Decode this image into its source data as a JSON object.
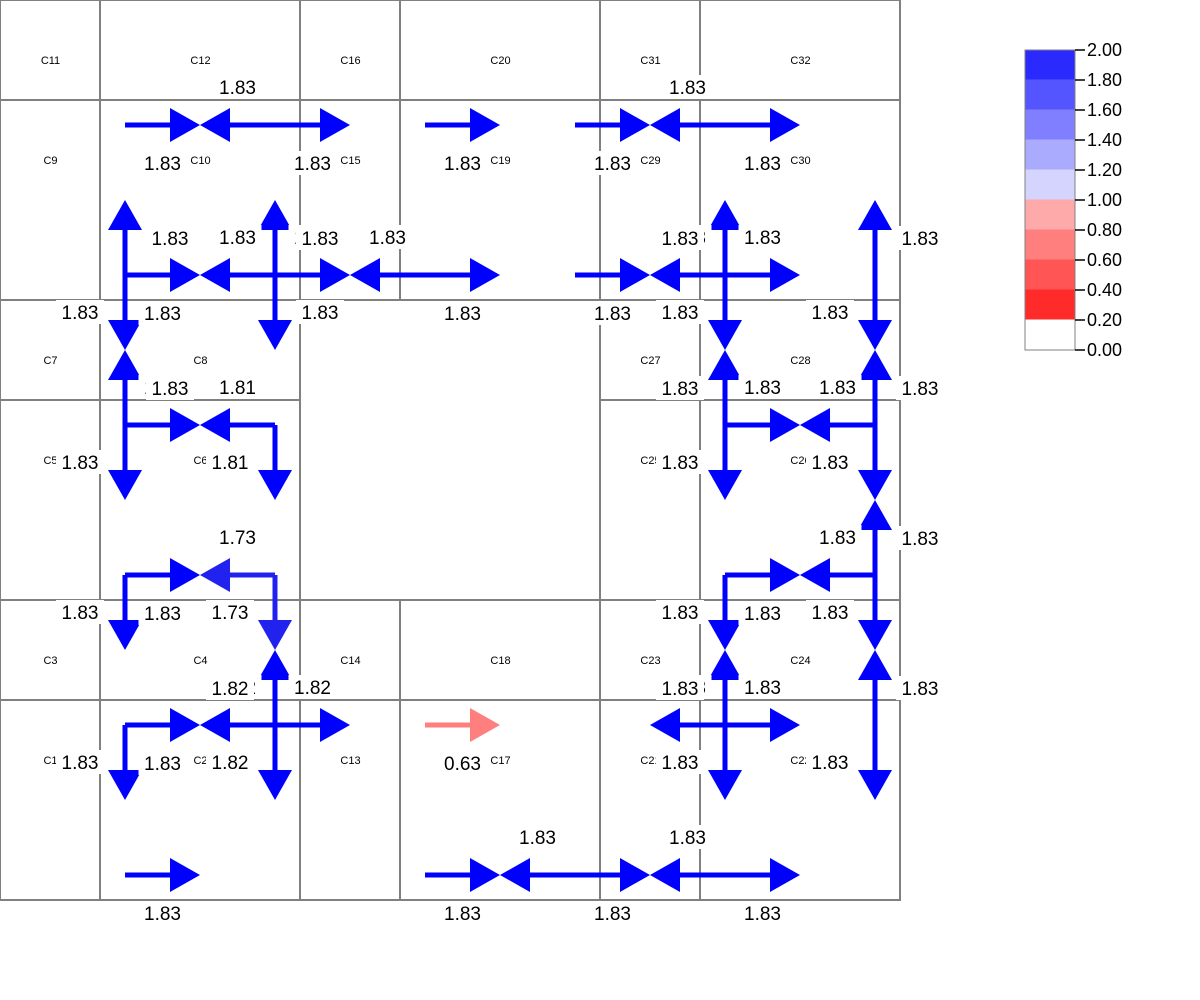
{
  "cells": [
    {
      "id": "C1",
      "c0": 0,
      "c1": 1,
      "r0": 7,
      "r1": 9
    },
    {
      "id": "C2",
      "c0": 1,
      "c1": 3,
      "r0": 7,
      "r1": 9
    },
    {
      "id": "C3",
      "c0": 0,
      "c1": 1,
      "r0": 6,
      "r1": 7
    },
    {
      "id": "C4",
      "c0": 1,
      "c1": 3,
      "r0": 6,
      "r1": 7
    },
    {
      "id": "C5",
      "c0": 0,
      "c1": 1,
      "r0": 4,
      "r1": 6
    },
    {
      "id": "C6",
      "c0": 1,
      "c1": 3,
      "r0": 4,
      "r1": 6
    },
    {
      "id": "C7",
      "c0": 0,
      "c1": 1,
      "r0": 3,
      "r1": 4
    },
    {
      "id": "C8",
      "c0": 1,
      "c1": 3,
      "r0": 3,
      "r1": 4
    },
    {
      "id": "C9",
      "c0": 0,
      "c1": 1,
      "r0": 1,
      "r1": 3
    },
    {
      "id": "C10",
      "c0": 1,
      "c1": 3,
      "r0": 1,
      "r1": 3
    },
    {
      "id": "C11",
      "c0": 0,
      "c1": 1,
      "r0": 0,
      "r1": 1
    },
    {
      "id": "C12",
      "c0": 1,
      "c1": 3,
      "r0": 0,
      "r1": 1
    },
    {
      "id": "C13",
      "c0": 3,
      "c1": 4,
      "r0": 7,
      "r1": 9
    },
    {
      "id": "C14",
      "c0": 3,
      "c1": 4,
      "r0": 6,
      "r1": 7
    },
    {
      "id": "C15",
      "c0": 3,
      "c1": 4,
      "r0": 1,
      "r1": 3
    },
    {
      "id": "C16",
      "c0": 3,
      "c1": 4,
      "r0": 0,
      "r1": 1
    },
    {
      "id": "C17",
      "c0": 4,
      "c1": 6,
      "r0": 7,
      "r1": 9
    },
    {
      "id": "C18",
      "c0": 4,
      "c1": 6,
      "r0": 6,
      "r1": 7
    },
    {
      "id": "C19",
      "c0": 4,
      "c1": 6,
      "r0": 1,
      "r1": 3
    },
    {
      "id": "C20",
      "c0": 4,
      "c1": 6,
      "r0": 0,
      "r1": 1
    },
    {
      "id": "C21",
      "c0": 6,
      "c1": 7,
      "r0": 7,
      "r1": 9
    },
    {
      "id": "C22",
      "c0": 7,
      "c1": 9,
      "r0": 7,
      "r1": 9
    },
    {
      "id": "C23",
      "c0": 6,
      "c1": 7,
      "r0": 6,
      "r1": 7
    },
    {
      "id": "C24",
      "c0": 7,
      "c1": 9,
      "r0": 6,
      "r1": 7
    },
    {
      "id": "C25",
      "c0": 6,
      "c1": 7,
      "r0": 4,
      "r1": 6
    },
    {
      "id": "C26",
      "c0": 7,
      "c1": 9,
      "r0": 4,
      "r1": 6
    },
    {
      "id": "C27",
      "c0": 6,
      "c1": 7,
      "r0": 3,
      "r1": 4
    },
    {
      "id": "C28",
      "c0": 7,
      "c1": 9,
      "r0": 3,
      "r1": 4
    },
    {
      "id": "C29",
      "c0": 6,
      "c1": 7,
      "r0": 1,
      "r1": 3
    },
    {
      "id": "C30",
      "c0": 7,
      "c1": 9,
      "r0": 1,
      "r1": 3
    },
    {
      "id": "C31",
      "c0": 6,
      "c1": 7,
      "r0": 0,
      "r1": 1
    },
    {
      "id": "C32",
      "c0": 7,
      "c1": 9,
      "r0": 0,
      "r1": 1
    }
  ],
  "horizontal_arrows": [
    {
      "y": 1.25,
      "x_from": 1.25,
      "x_to": 2,
      "value": 1.83,
      "label": "1.83",
      "label_side": "below"
    },
    {
      "y": 1.25,
      "x_from": 2.75,
      "x_to": 2,
      "value": 1.83,
      "label": "1.83",
      "label_side": "above"
    },
    {
      "y": 1.25,
      "x_from": 2.75,
      "x_to": 3.5,
      "value": 1.83,
      "label": "1.83",
      "label_side": "below"
    },
    {
      "y": 1.25,
      "x_from": 4.25,
      "x_to": 5,
      "value": 1.83,
      "label": "1.83",
      "label_side": "below"
    },
    {
      "y": 1.25,
      "x_from": 5.75,
      "x_to": 6.5,
      "value": 1.83,
      "label": "1.83",
      "label_side": "below"
    },
    {
      "y": 1.25,
      "x_from": 7.25,
      "x_to": 6.5,
      "value": 1.83,
      "label": "1.83",
      "label_side": "above"
    },
    {
      "y": 1.25,
      "x_from": 7.25,
      "x_to": 8,
      "value": 1.83,
      "label": "1.83",
      "label_side": "below"
    },
    {
      "y": 2.75,
      "x_from": 1.25,
      "x_to": 2,
      "value": 1.83,
      "label": "1.83",
      "label_side": "below"
    },
    {
      "y": 2.75,
      "x_from": 2.75,
      "x_to": 2,
      "value": 1.83,
      "label": "1.83",
      "label_side": "above"
    },
    {
      "y": 2.75,
      "x_from": 2.75,
      "x_to": 3.5,
      "value": 1.83,
      "label": "1.83",
      "label_side": "above"
    },
    {
      "y": 2.75,
      "x_from": 4.25,
      "x_to": 3.5,
      "value": 1.83,
      "label": "1.83",
      "label_side": "above"
    },
    {
      "y": 2.75,
      "x_from": 4.25,
      "x_to": 5,
      "value": 1.83,
      "label": "1.83",
      "label_side": "below"
    },
    {
      "y": 2.75,
      "x_from": 5.75,
      "x_to": 6.5,
      "value": 1.83,
      "label": "1.83",
      "label_side": "below"
    },
    {
      "y": 2.75,
      "x_from": 7.25,
      "x_to": 6.5,
      "value": 1.83,
      "label": "1.83",
      "label_side": "above"
    },
    {
      "y": 2.75,
      "x_from": 7.25,
      "x_to": 8,
      "value": 1.83,
      "label": "1.83",
      "label_side": "above"
    },
    {
      "y": 4.25,
      "x_from": 1.25,
      "x_to": 2,
      "value": 1.83,
      "label": "1.83",
      "label_side": "above"
    },
    {
      "y": 4.25,
      "x_from": 2.75,
      "x_to": 2,
      "value": 1.81,
      "label": "1.81",
      "label_side": "above"
    },
    {
      "y": 4.25,
      "x_from": 7.25,
      "x_to": 8,
      "value": 1.83,
      "label": "1.83",
      "label_side": "above"
    },
    {
      "y": 4.25,
      "x_from": 8.75,
      "x_to": 8,
      "value": 1.83,
      "label": "1.83",
      "label_side": "above"
    },
    {
      "y": 5.75,
      "x_from": 1.25,
      "x_to": 2,
      "value": 1.83,
      "label": "1.83",
      "label_side": "below"
    },
    {
      "y": 5.75,
      "x_from": 2.75,
      "x_to": 2,
      "value": 1.73,
      "label": "1.73",
      "label_side": "above"
    },
    {
      "y": 5.75,
      "x_from": 7.25,
      "x_to": 8,
      "value": 1.83,
      "label": "1.83",
      "label_side": "below"
    },
    {
      "y": 5.75,
      "x_from": 8.75,
      "x_to": 8,
      "value": 1.83,
      "label": "1.83",
      "label_side": "above"
    },
    {
      "y": 7.25,
      "x_from": 1.25,
      "x_to": 2,
      "value": 1.83,
      "label": "1.83",
      "label_side": "below"
    },
    {
      "y": 7.25,
      "x_from": 2.75,
      "x_to": 2,
      "value": 1.82,
      "label": "1.82",
      "label_side": "above"
    },
    {
      "y": 7.25,
      "x_from": 2.75,
      "x_to": 3.5,
      "value": 1.82,
      "label": "1.82",
      "label_side": "above"
    },
    {
      "y": 7.25,
      "x_from": 4.25,
      "x_to": 5,
      "value": 0.63,
      "label": "0.63",
      "label_side": "below"
    },
    {
      "y": 7.25,
      "x_from": 7.25,
      "x_to": 6.5,
      "value": 1.83,
      "label": "1.83",
      "label_side": "above"
    },
    {
      "y": 7.25,
      "x_from": 7.25,
      "x_to": 8,
      "value": 1.83,
      "label": "1.83",
      "label_side": "above"
    },
    {
      "y": 8.75,
      "x_from": 1.25,
      "x_to": 2,
      "value": 1.83,
      "label": "1.83",
      "label_side": "below"
    },
    {
      "y": 8.75,
      "x_from": 4.25,
      "x_to": 5,
      "value": 1.83,
      "label": "1.83",
      "label_side": "below"
    },
    {
      "y": 8.75,
      "x_from": 5.75,
      "x_to": 5,
      "value": 1.83,
      "label": "1.83",
      "label_side": "above"
    },
    {
      "y": 8.75,
      "x_from": 5.75,
      "x_to": 6.5,
      "value": 1.83,
      "label": "1.83",
      "label_side": "below"
    },
    {
      "y": 8.75,
      "x_from": 7.25,
      "x_to": 6.5,
      "value": 1.83,
      "label": "1.83",
      "label_side": "above"
    },
    {
      "y": 8.75,
      "x_from": 7.25,
      "x_to": 8,
      "value": 1.83,
      "label": "1.83",
      "label_side": "below"
    }
  ],
  "vertical_arrows": [
    {
      "x": 1.25,
      "y_from": 2.75,
      "y_to": 2,
      "value": 1.83,
      "label": "1.83",
      "label_side": "right"
    },
    {
      "x": 1.25,
      "y_from": 2.75,
      "y_to": 3.5,
      "value": 1.83,
      "label": "1.83",
      "label_side": "left"
    },
    {
      "x": 1.25,
      "y_from": 4.25,
      "y_to": 3.5,
      "value": 1.83,
      "label": "1.83",
      "label_side": "right"
    },
    {
      "x": 1.25,
      "y_from": 4.25,
      "y_to": 5,
      "value": 1.83,
      "label": "1.83",
      "label_side": "left"
    },
    {
      "x": 1.25,
      "y_from": 5.75,
      "y_to": 6.5,
      "value": 1.83,
      "label": "1.83",
      "label_side": "left"
    },
    {
      "x": 1.25,
      "y_from": 7.25,
      "y_to": 8,
      "value": 1.83,
      "label": "1.83",
      "label_side": "left"
    },
    {
      "x": 2.75,
      "y_from": 2.75,
      "y_to": 2,
      "value": 1.83,
      "label": "1.83",
      "label_side": "right"
    },
    {
      "x": 2.75,
      "y_from": 2.75,
      "y_to": 3.5,
      "value": 1.83,
      "label": "1.83",
      "label_side": "right"
    },
    {
      "x": 2.75,
      "y_from": 4.25,
      "y_to": 5,
      "value": 1.81,
      "label": "1.81",
      "label_side": "left"
    },
    {
      "x": 2.75,
      "y_from": 5.75,
      "y_to": 6.5,
      "value": 1.73,
      "label": "1.73",
      "label_side": "left"
    },
    {
      "x": 2.75,
      "y_from": 7.25,
      "y_to": 6.5,
      "value": 1.82,
      "label": "1.82",
      "label_side": "left"
    },
    {
      "x": 2.75,
      "y_from": 7.25,
      "y_to": 8,
      "value": 1.82,
      "label": "1.82",
      "label_side": "left"
    },
    {
      "x": 7.25,
      "y_from": 2.75,
      "y_to": 2,
      "value": 1.83,
      "label": "1.83",
      "label_side": "left"
    },
    {
      "x": 7.25,
      "y_from": 2.75,
      "y_to": 3.5,
      "value": 1.83,
      "label": "1.83",
      "label_side": "left"
    },
    {
      "x": 7.25,
      "y_from": 4.25,
      "y_to": 3.5,
      "value": 1.83,
      "label": "1.83",
      "label_side": "left"
    },
    {
      "x": 7.25,
      "y_from": 4.25,
      "y_to": 5,
      "value": 1.83,
      "label": "1.83",
      "label_side": "left"
    },
    {
      "x": 7.25,
      "y_from": 5.75,
      "y_to": 6.5,
      "value": 1.83,
      "label": "1.83",
      "label_side": "left"
    },
    {
      "x": 7.25,
      "y_from": 7.25,
      "y_to": 6.5,
      "value": 1.83,
      "label": "1.83",
      "label_side": "left"
    },
    {
      "x": 7.25,
      "y_from": 7.25,
      "y_to": 8,
      "value": 1.83,
      "label": "1.83",
      "label_side": "left"
    },
    {
      "x": 8.75,
      "y_from": 2.75,
      "y_to": 2,
      "value": 1.83,
      "label": "1.83",
      "label_side": "right"
    },
    {
      "x": 8.75,
      "y_from": 2.75,
      "y_to": 3.5,
      "value": 1.83,
      "label": "1.83",
      "label_side": "left"
    },
    {
      "x": 8.75,
      "y_from": 4.25,
      "y_to": 3.5,
      "value": 1.83,
      "label": "1.83",
      "label_side": "right"
    },
    {
      "x": 8.75,
      "y_from": 4.25,
      "y_to": 5,
      "value": 1.83,
      "label": "1.83",
      "label_side": "left"
    },
    {
      "x": 8.75,
      "y_from": 5.75,
      "y_to": 5,
      "value": 1.83,
      "label": "1.83",
      "label_side": "right"
    },
    {
      "x": 8.75,
      "y_from": 5.75,
      "y_to": 6.5,
      "value": 1.83,
      "label": "1.83",
      "label_side": "left"
    },
    {
      "x": 8.75,
      "y_from": 7.25,
      "y_to": 6.5,
      "value": 1.83,
      "label": "1.83",
      "label_side": "right"
    },
    {
      "x": 8.75,
      "y_from": 7.25,
      "y_to": 8,
      "value": 1.83,
      "label": "1.83",
      "label_side": "left"
    }
  ],
  "legend": {
    "ticks": [
      "2.00",
      "1.80",
      "1.60",
      "1.40",
      "1.20",
      "1.00",
      "0.80",
      "0.60",
      "0.40",
      "0.20",
      "0.00"
    ],
    "colors": [
      "#2a2aff",
      "#5555ff",
      "#7f7fff",
      "#aaaaff",
      "#d4d4ff",
      "#ffaaaa",
      "#ff7f7f",
      "#ff5555",
      "#ff2a2a",
      "#ffffff"
    ]
  }
}
